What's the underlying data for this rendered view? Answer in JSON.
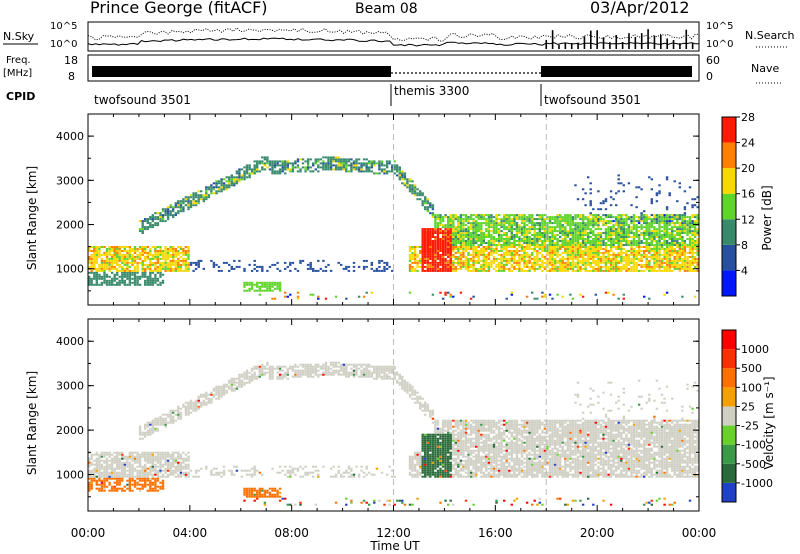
{
  "header": {
    "station": "Prince George (fitACF)",
    "beam": "Beam 08",
    "date": "03/Apr/2012"
  },
  "strip_panels": {
    "nsky_label": "N.Sky",
    "nsky_ticks": [
      "10^5",
      "10^0"
    ],
    "nsearch_label": "N.Search",
    "nsearch_ticks": [
      "10^5",
      "10^0"
    ],
    "freq_label_1": "Freq.",
    "freq_label_2": "[MHz]",
    "freq_ticks": [
      "18",
      "8"
    ],
    "nave_label": "Nave",
    "nave_ticks": [
      "60",
      "0"
    ],
    "cpid_label": "CPID",
    "cpid_segments": [
      {
        "label": "twofsound 3501",
        "start_hour": 0
      },
      {
        "label": "themis 3300",
        "start_hour": 12
      },
      {
        "label": "twofsound 3501",
        "start_hour": 18
      }
    ]
  },
  "chart_data": [
    {
      "type": "heatmap",
      "title": "",
      "xlabel": "Time UT",
      "ylabel": "Slant Range [km]",
      "xlim": [
        0,
        24
      ],
      "ylim": [
        180,
        4500
      ],
      "x_ticks": [
        "00:00",
        "04:00",
        "08:00",
        "12:00",
        "16:00",
        "20:00",
        "00:00"
      ],
      "y_ticks": [
        "1000",
        "2000",
        "3000",
        "4000"
      ],
      "colorbar_label": "Power [dB]",
      "colorbar_ticks": [
        "4",
        "8",
        "12",
        "16",
        "20",
        "24",
        "28"
      ],
      "colorbar_colors": [
        "#0018ff",
        "#27509e",
        "#388a6b",
        "#5fd42a",
        "#f7d900",
        "#ff8000",
        "#ff1a00"
      ],
      "mode_change_hours": [
        12,
        18
      ]
    },
    {
      "type": "heatmap",
      "title": "",
      "xlabel": "Time UT",
      "ylabel": "Slant Range [km]",
      "xlim": [
        0,
        24
      ],
      "ylim": [
        180,
        4500
      ],
      "x_ticks": [
        "00:00",
        "04:00",
        "08:00",
        "12:00",
        "16:00",
        "20:00",
        "00:00"
      ],
      "y_ticks": [
        "1000",
        "2000",
        "3000",
        "4000"
      ],
      "colorbar_label": "Velocity [m s⁻¹]",
      "colorbar_ticks": [
        "1000",
        "500",
        "100",
        "25",
        "-25",
        "-100",
        "-500",
        "-1000"
      ],
      "colorbar_colors": [
        "#2040c8",
        "#2a6a3a",
        "#3b9a48",
        "#6ad02c",
        "#cfcfc4",
        "#f3a000",
        "#ff7000",
        "#ff3000",
        "#ff0000"
      ],
      "mode_change_hours": [
        12,
        18
      ]
    }
  ]
}
